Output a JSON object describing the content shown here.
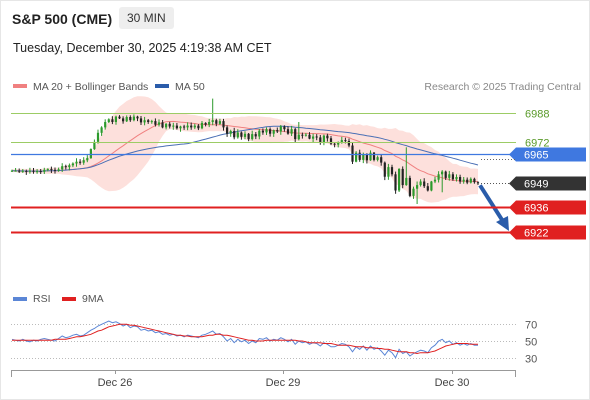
{
  "header": {
    "title": "S&P 500 (CME)",
    "timeframe": "30 MIN",
    "datetime": "Tuesday, December 30, 2025 4:19:38 AM CET"
  },
  "legend": {
    "ma20": "MA 20 + Bollinger Bands",
    "ma50": "MA 50",
    "copyright": "Research © 2025 Trading Central"
  },
  "rsi_legend": {
    "rsi": "RSI",
    "ma": "9MA"
  },
  "colors": {
    "up": "#2c9a2c",
    "down": "#222222",
    "ma20": "#f08080",
    "bollinger_fill": "#fde0dc",
    "ma50": "#4a6fb5",
    "resistance": "#9ccc65",
    "blue_level": "#3f78e0",
    "support": "#e02020",
    "current": "#333333",
    "arrow": "#2a5caa",
    "rsi": "#5b86d6",
    "rsi_ma": "#e02020"
  },
  "chart_data": {
    "type": "candlestick",
    "ylim": [
      6912,
      6998
    ],
    "x_ticks": [
      "Dec 26",
      "Dec 29",
      "Dec 30"
    ],
    "levels": [
      {
        "value": 6988,
        "label": "6988",
        "kind": "resistance"
      },
      {
        "value": 6972,
        "label": "6972",
        "kind": "resistance"
      },
      {
        "value": 6965,
        "label": "6965",
        "kind": "ma50-level"
      },
      {
        "value": 6949,
        "label": "6949",
        "kind": "current"
      },
      {
        "value": 6936,
        "label": "6936",
        "kind": "support"
      },
      {
        "value": 6922,
        "label": "6922",
        "kind": "support"
      }
    ],
    "close": [
      6956,
      6956,
      6955.6,
      6955.9,
      6955.5,
      6956,
      6955.5,
      6955.8,
      6955.4,
      6956.5,
      6957,
      6956.5,
      6956,
      6956.8,
      6958.5,
      6958,
      6959,
      6960,
      6961,
      6960.4,
      6961.8,
      6963,
      6968,
      6972,
      6977,
      6980,
      6983,
      6984.5,
      6983,
      6986,
      6985,
      6983.4,
      6985.8,
      6984,
      6986,
      6985,
      6982.8,
      6984,
      6983,
      6983.5,
      6981.5,
      6982.8,
      6980,
      6982,
      6980.5,
      6981,
      6979.5,
      6980.5,
      6980,
      6981,
      6980,
      6981,
      6979.5,
      6982.5,
      6981.5,
      6983,
      6984,
      6982,
      6983.5,
      6980,
      6976.5,
      6978,
      6974.5,
      6977.2,
      6974.8,
      6976.5,
      6973.5,
      6976.3,
      6975,
      6978.2,
      6977.2,
      6979,
      6976.5,
      6978.5,
      6977.7,
      6980.5,
      6979,
      6976.5,
      6979,
      6973.5,
      6976,
      6975.5,
      6976,
      6973.8,
      6975,
      6974.5,
      6971.5,
      6975.5,
      6974,
      6971,
      6970.5,
      6971.5,
      6973,
      6972.5,
      6970,
      6961,
      6966,
      6962,
      6965,
      6961.8,
      6966,
      6962,
      6963.5,
      6960.5,
      6952.7,
      6958,
      6954,
      6945,
      6957,
      6948,
      6952,
      6942,
      6946,
      6948,
      6950,
      6947.4,
      6945,
      6950,
      6951,
      6954,
      6955.5,
      6952,
      6954,
      6951.2,
      6952.5,
      6950,
      6951,
      6949.4,
      6951.5,
      6949.6,
      6949
    ],
    "rsi": {
      "ylim": [
        20,
        80
      ],
      "levels": [
        70,
        50,
        30
      ],
      "rsi_values": [
        52,
        51,
        50,
        52,
        50,
        49,
        51,
        50,
        52,
        53,
        52,
        51,
        50,
        53,
        56,
        54,
        55,
        57,
        58,
        56,
        57,
        60,
        63,
        65,
        68,
        70,
        72,
        74,
        72,
        73,
        71,
        68,
        70,
        66,
        68,
        67,
        63,
        64,
        62,
        63,
        60,
        61,
        58,
        59,
        57,
        58,
        56,
        57,
        55,
        57,
        56,
        55,
        54,
        57,
        58,
        60,
        62,
        58,
        59,
        55,
        50,
        53,
        48,
        52,
        49,
        51,
        47,
        50,
        48,
        53,
        52,
        54,
        50,
        52,
        51,
        54,
        52,
        49,
        52,
        46,
        50,
        48,
        49,
        46,
        48,
        47,
        44,
        48,
        46,
        43,
        43,
        45,
        47,
        46,
        43,
        37,
        43,
        40,
        44,
        39,
        44,
        40,
        42,
        38,
        33,
        39,
        36,
        30,
        40,
        35,
        37,
        32,
        35,
        37,
        39,
        38,
        36,
        42,
        45,
        50,
        52,
        48,
        50,
        46,
        48,
        45,
        47,
        45,
        47,
        45,
        45
      ],
      "ma_values": [
        51,
        51,
        51,
        51,
        51,
        51,
        51,
        51,
        51,
        51,
        51,
        51,
        52,
        52,
        52,
        52,
        53,
        54,
        55,
        55,
        56,
        57,
        58,
        60,
        62,
        63,
        65,
        67,
        68,
        69,
        70,
        70,
        70,
        69,
        69,
        68,
        67,
        66,
        65,
        64,
        63,
        62,
        61,
        60,
        59,
        58,
        57,
        57,
        56,
        56,
        55,
        55,
        55,
        55,
        56,
        57,
        57,
        58,
        58,
        57,
        57,
        56,
        55,
        54,
        53,
        52,
        51,
        51,
        50,
        50,
        50,
        51,
        51,
        51,
        51,
        51,
        51,
        51,
        51,
        51,
        50,
        50,
        49,
        48,
        48,
        48,
        48,
        47,
        47,
        47,
        46,
        45,
        45,
        45,
        45,
        44,
        43,
        43,
        43,
        42,
        42,
        42,
        41,
        41,
        40,
        40,
        39,
        38,
        37,
        37,
        37,
        36,
        36,
        35,
        36,
        36,
        36,
        37,
        38,
        40,
        42,
        44,
        45,
        46,
        47,
        47,
        47,
        47,
        46,
        46,
        46
      ]
    }
  }
}
